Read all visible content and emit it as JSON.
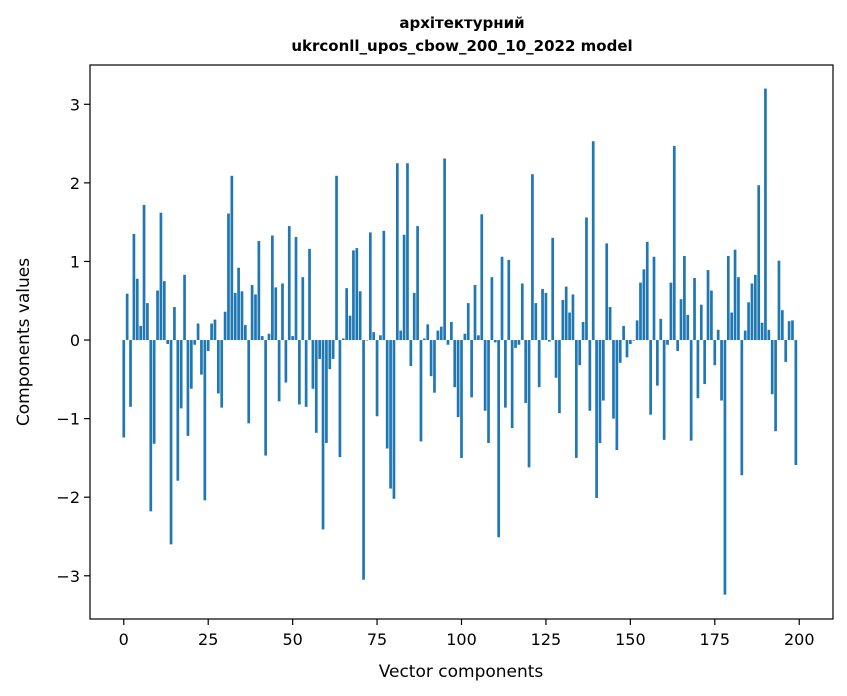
{
  "chart_data": {
    "type": "bar",
    "title": "архітектурний",
    "subtitle": "ukrconll_upos_cbow_200_10_2022 model",
    "xlabel": "Vector components",
    "ylabel": "Components values",
    "xlim": [
      -10,
      210
    ],
    "ylim": [
      -3.55,
      3.5
    ],
    "xticks": [
      0,
      25,
      50,
      75,
      100,
      125,
      150,
      175,
      200
    ],
    "xtick_labels": [
      "0",
      "25",
      "50",
      "75",
      "100",
      "125",
      "150",
      "175",
      "200"
    ],
    "yticks": [
      -3,
      -2,
      -1,
      0,
      1,
      2,
      3
    ],
    "ytick_labels": [
      "−3",
      "−2",
      "−1",
      "0",
      "1",
      "2",
      "3"
    ],
    "grid": false,
    "legend": "none",
    "bar_color": "#1f77b4",
    "values": [
      -1.24,
      0.59,
      -0.85,
      1.35,
      0.78,
      0.18,
      1.72,
      0.47,
      -2.18,
      -1.32,
      0.63,
      1.62,
      0.75,
      -0.05,
      -2.6,
      0.42,
      -1.79,
      -0.87,
      0.83,
      -1.22,
      -0.62,
      -0.06,
      0.21,
      -0.44,
      -2.04,
      -0.14,
      0.21,
      0.26,
      -0.68,
      -0.86,
      0.36,
      1.61,
      2.09,
      0.6,
      0.92,
      0.62,
      0.19,
      -1.06,
      0.7,
      0.58,
      1.26,
      0.05,
      -1.47,
      0.08,
      1.33,
      0.67,
      -0.78,
      0.72,
      -0.54,
      1.45,
      0.05,
      1.31,
      -0.82,
      0.8,
      -0.85,
      1.16,
      -0.62,
      -1.18,
      -0.24,
      -2.41,
      -1.31,
      -0.37,
      -0.24,
      2.09,
      -1.49,
      0.02,
      0.66,
      0.31,
      1.14,
      1.17,
      0.62,
      -3.05,
      0.0,
      1.37,
      0.1,
      -0.97,
      0.06,
      1.39,
      -1.38,
      -1.89,
      -2.02,
      2.25,
      0.12,
      1.34,
      2.25,
      -0.33,
      0.6,
      1.45,
      -1.29,
      0.02,
      0.2,
      -0.46,
      -0.67,
      0.12,
      0.17,
      2.31,
      -0.06,
      0.23,
      -0.6,
      -0.98,
      -1.5,
      0.08,
      0.47,
      -0.73,
      0.7,
      0.06,
      1.6,
      -0.9,
      -1.31,
      0.8,
      -0.03,
      -2.51,
      1.06,
      -0.86,
      1.02,
      -1.12,
      -0.1,
      -0.06,
      0.72,
      -0.8,
      -1.62,
      2.11,
      0.47,
      -0.6,
      0.65,
      0.6,
      -0.02,
      1.3,
      -0.48,
      -0.93,
      0.51,
      0.68,
      0.35,
      0.58,
      -1.5,
      -0.32,
      0.23,
      1.56,
      -0.9,
      2.53,
      -2.01,
      -1.31,
      -0.77,
      1.23,
      0.42,
      -1.0,
      -1.4,
      -0.29,
      0.18,
      -0.22,
      -0.05,
      0.0,
      0.25,
      0.73,
      0.9,
      1.25,
      -0.95,
      1.06,
      -0.58,
      0.27,
      -1.27,
      -0.06,
      0.73,
      2.47,
      -0.14,
      0.52,
      1.07,
      0.32,
      -1.28,
      0.79,
      -0.74,
      0.45,
      -0.56,
      0.89,
      0.63,
      -0.32,
      0.13,
      -0.77,
      -3.24,
      1.07,
      0.35,
      1.15,
      0.8,
      -1.72,
      0.12,
      0.48,
      0.72,
      0.83,
      1.97,
      0.22,
      3.2,
      0.13,
      -0.69,
      -1.16,
      1.01,
      0.38,
      -0.28,
      0.24,
      0.25,
      -1.59
    ]
  }
}
